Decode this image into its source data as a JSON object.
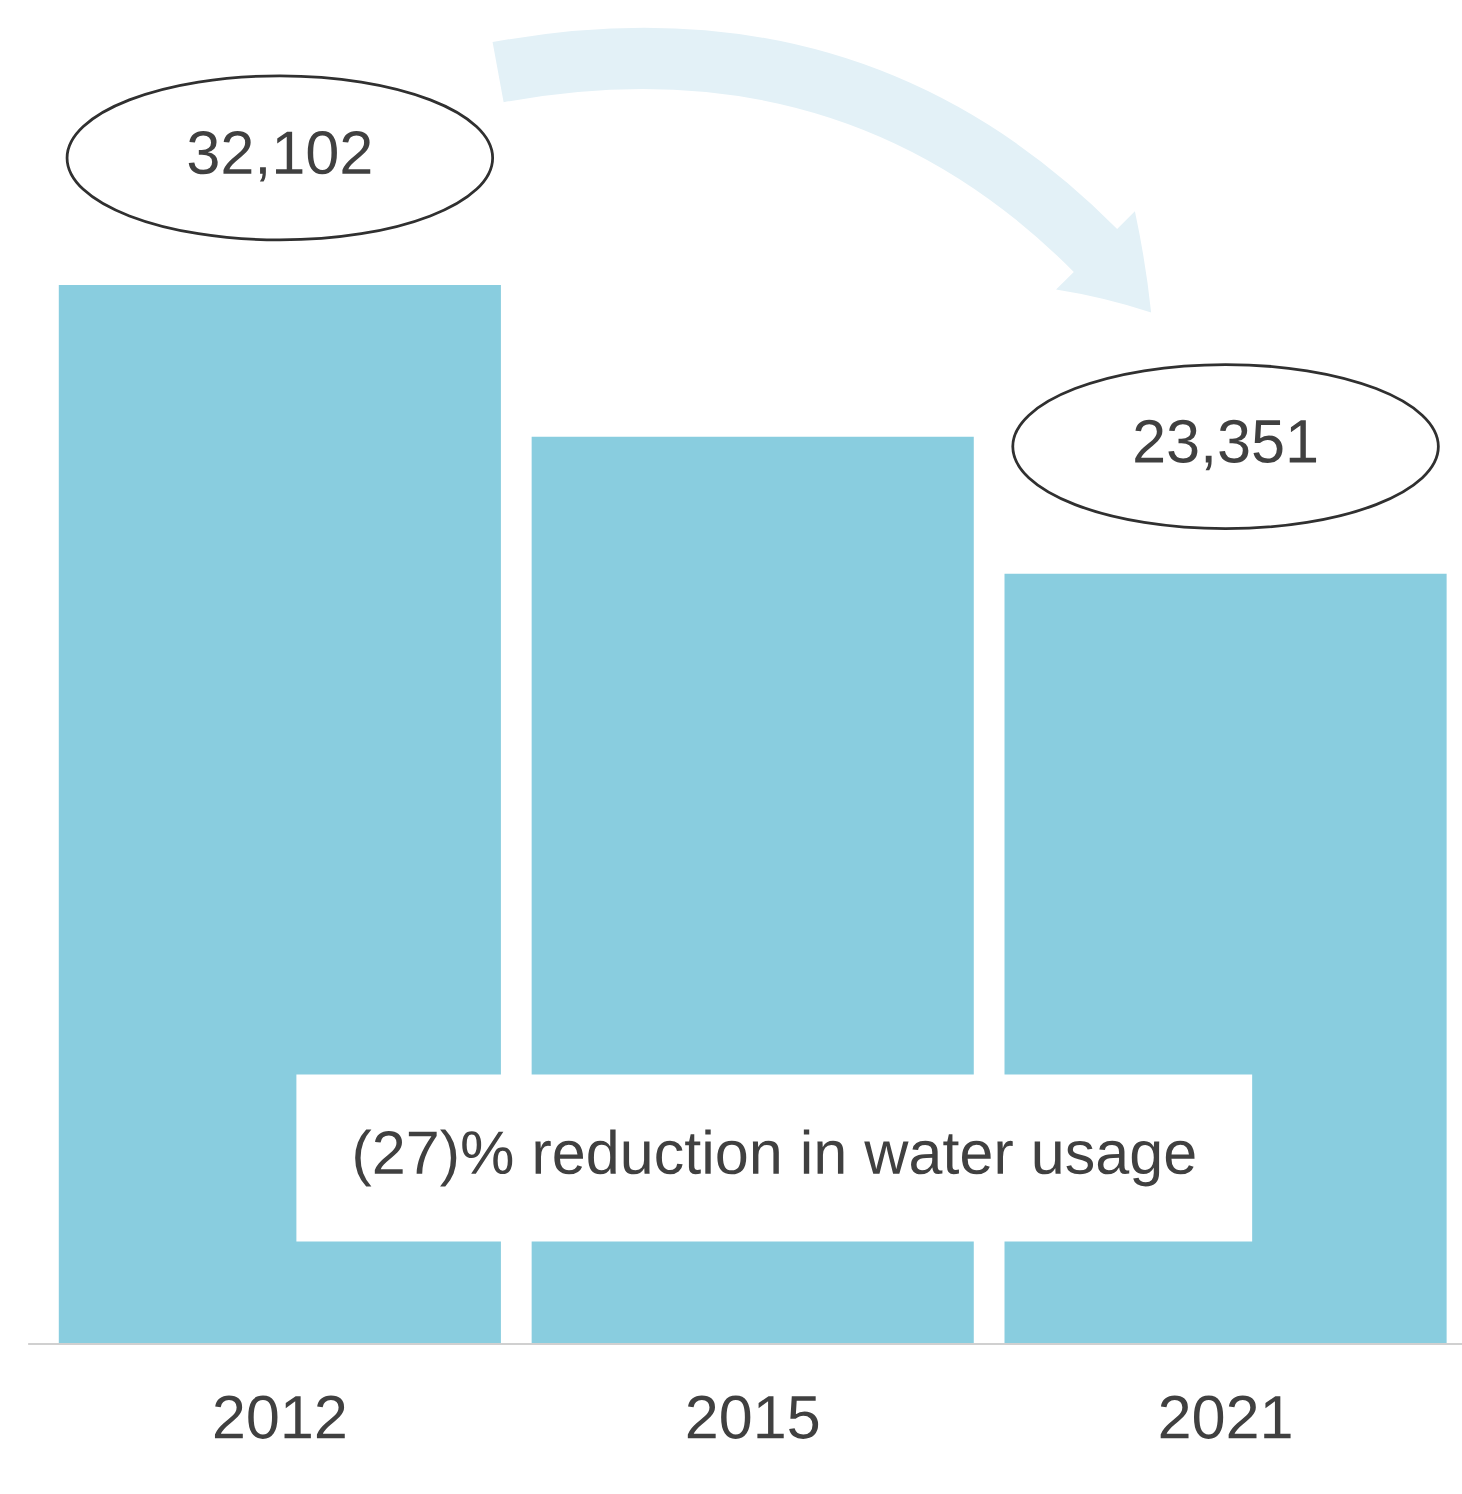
{
  "chart_data": {
    "type": "bar",
    "categories": [
      "2012",
      "2015",
      "2021"
    ],
    "values": [
      32102,
      27500,
      23351
    ],
    "color": "#89cddf",
    "value_labels": [
      "32,102",
      null,
      "23,351"
    ],
    "annotations": [
      "(27)% reduction in water usage"
    ]
  }
}
